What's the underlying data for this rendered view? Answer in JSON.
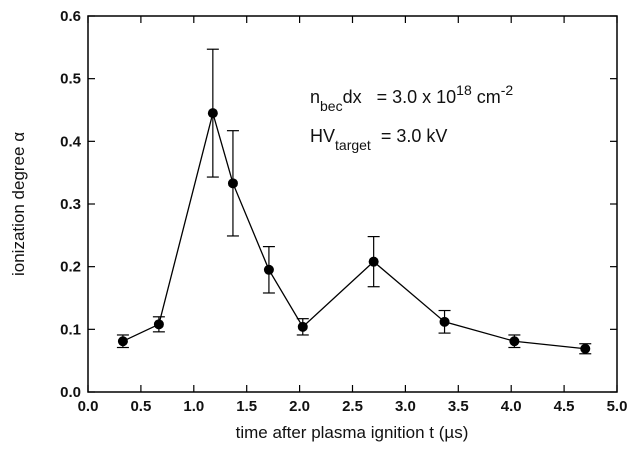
{
  "chart_data": {
    "type": "line",
    "x_label": "time after plasma ignition t (µs)",
    "y_label": "ionization degree   α",
    "x": [
      0.33,
      0.67,
      1.18,
      1.37,
      1.71,
      2.03,
      2.7,
      3.37,
      4.03,
      4.7
    ],
    "values": [
      0.081,
      0.108,
      0.445,
      0.333,
      0.195,
      0.104,
      0.208,
      0.112,
      0.081,
      0.069
    ],
    "errors": [
      0.01,
      0.012,
      0.102,
      0.084,
      0.037,
      0.013,
      0.04,
      0.018,
      0.01,
      0.008
    ],
    "color": "#000000",
    "xlim": [
      0.0,
      5.0
    ],
    "ylim": [
      0.0,
      0.6
    ],
    "xticks": [
      {
        "value": 0,
        "label": "0.0"
      },
      {
        "value": 0.5,
        "label": "0.5"
      },
      {
        "value": 1,
        "label": "1.0"
      },
      {
        "value": 1.5,
        "label": "1.5"
      },
      {
        "value": 2,
        "label": "2.0"
      },
      {
        "value": 2.5,
        "label": "2.5"
      },
      {
        "value": 3,
        "label": "3.0"
      },
      {
        "value": 3.5,
        "label": "3.5"
      },
      {
        "value": 4,
        "label": "4.0"
      },
      {
        "value": 4.5,
        "label": "4.5"
      },
      {
        "value": 5,
        "label": "5.0"
      }
    ],
    "yticks": [
      {
        "value": 0,
        "label": "0.0"
      },
      {
        "value": 0.1,
        "label": "0.1"
      },
      {
        "value": 0.2,
        "label": "0.2"
      },
      {
        "value": 0.3,
        "label": "0.3"
      },
      {
        "value": 0.4,
        "label": "0.4"
      },
      {
        "value": 0.5,
        "label": "0.5"
      },
      {
        "value": 0.6,
        "label": "0.6"
      }
    ],
    "grid": false,
    "annotations": [
      [
        {
          "text": "n"
        },
        {
          "text": "bec",
          "script": "sub"
        },
        {
          "text": "dx   = 3.0 x 10"
        },
        {
          "text": "18",
          "script": "sup"
        },
        {
          "text": " cm"
        },
        {
          "text": "-2",
          "script": "sup"
        }
      ],
      [
        {
          "text": "HV"
        },
        {
          "text": "target",
          "script": "sub"
        },
        {
          "text": "  = 3.0 kV"
        }
      ]
    ]
  }
}
